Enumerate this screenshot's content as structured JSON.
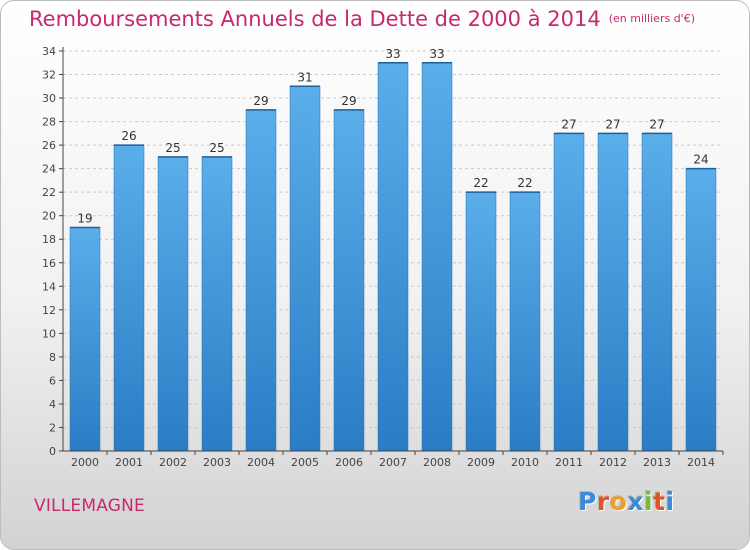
{
  "title": "Remboursements Annuels de la Dette de 2000 à 2014",
  "unit_label": "(en milliers d'€)",
  "location": "VILLEMAGNE",
  "brand": {
    "letters": [
      "P",
      "r",
      "o",
      "x",
      "i",
      "t",
      "i"
    ],
    "colors": [
      "#3a8ad8",
      "#e0542a",
      "#f0a020",
      "#3a8ad8",
      "#7ab83a",
      "#e0542a",
      "#3a8ad8"
    ]
  },
  "colors": {
    "bar_light": "#5aaeea",
    "bar_dark": "#2a7dc4",
    "title": "#c8286e",
    "axis": "#444444",
    "grid": "#c9c9c9"
  },
  "chart_data": {
    "type": "bar",
    "title": "Remboursements Annuels de la Dette de 2000 à 2014",
    "ylabel": "en milliers d'€",
    "xlabel": "",
    "categories": [
      "2000",
      "2001",
      "2002",
      "2003",
      "2004",
      "2005",
      "2006",
      "2007",
      "2008",
      "2009",
      "2010",
      "2011",
      "2012",
      "2013",
      "2014"
    ],
    "values": [
      19,
      26,
      25,
      25,
      29,
      31,
      29,
      33,
      33,
      22,
      22,
      27,
      27,
      27,
      24
    ],
    "ylim": [
      0,
      34
    ],
    "yticks": [
      0,
      2,
      4,
      6,
      8,
      10,
      12,
      14,
      16,
      18,
      20,
      22,
      24,
      26,
      28,
      30,
      32,
      34
    ],
    "grid": true
  }
}
